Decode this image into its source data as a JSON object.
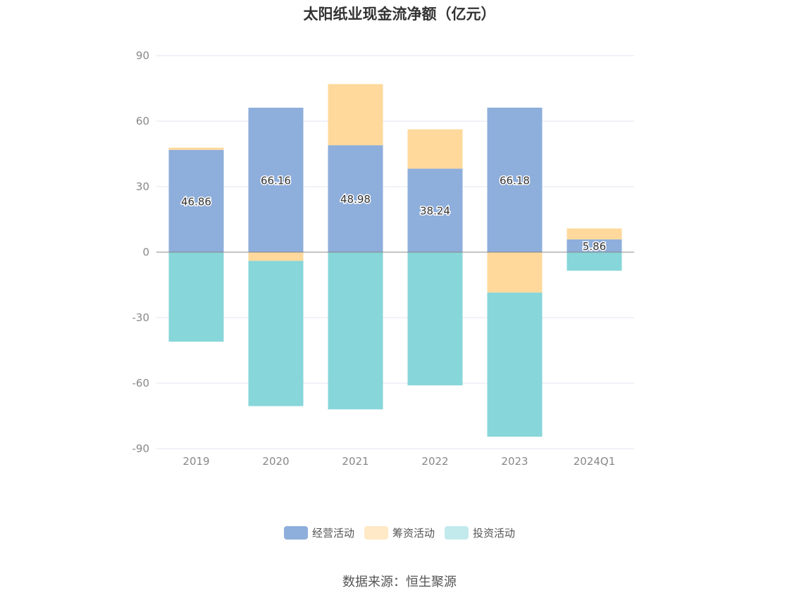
{
  "chart_data": {
    "type": "bar",
    "stacked": true,
    "title": "太阳纸业现金流净额（亿元）",
    "categories": [
      "2019",
      "2020",
      "2021",
      "2022",
      "2023",
      "2024Q1"
    ],
    "series": [
      {
        "name": "经营活动",
        "color": "#8eaedb",
        "values": [
          46.86,
          66.16,
          48.98,
          38.24,
          66.18,
          5.86
        ],
        "labels_shown": true
      },
      {
        "name": "筹资活动",
        "color": "#fed99b",
        "values": [
          1.0,
          -4.0,
          28.0,
          18.0,
          -18.5,
          5.0
        ],
        "labels_shown": false
      },
      {
        "name": "投资活动",
        "color": "#87d6d9",
        "values": [
          -41.0,
          -66.5,
          -72.0,
          -61.0,
          -66.0,
          -8.5
        ],
        "labels_shown": false
      }
    ],
    "legend_colors": [
      "#8eaedb",
      "#ffe9c6",
      "#c2eaec"
    ],
    "yticks": [
      90,
      60,
      30,
      0,
      -30,
      -60,
      -90
    ],
    "ylim": [
      -90,
      90
    ],
    "xlabel": "",
    "ylabel": "",
    "grid": true,
    "legend_position": "bottom"
  },
  "source": "数据来源：恒生聚源"
}
